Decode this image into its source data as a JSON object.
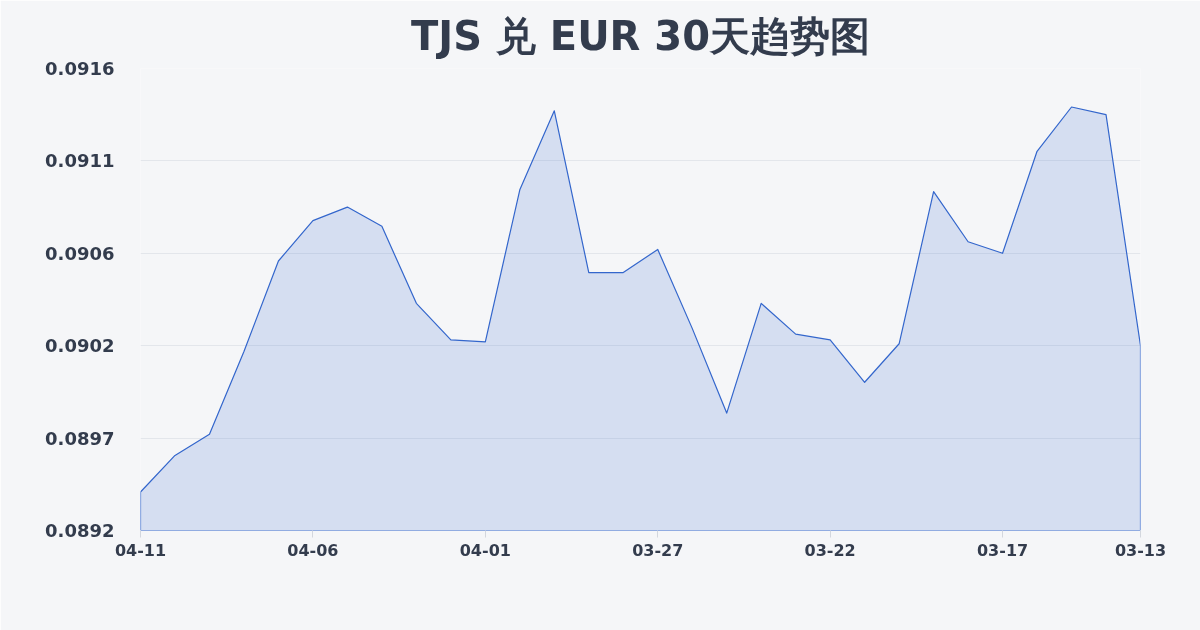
{
  "chart_data": {
    "type": "area",
    "title": "TJS 兑 EUR 30天趋势图",
    "categories": [
      "04-11",
      null,
      null,
      null,
      null,
      "04-06",
      null,
      null,
      null,
      null,
      "04-01",
      null,
      null,
      null,
      null,
      "03-27",
      null,
      null,
      null,
      null,
      "03-22",
      null,
      null,
      null,
      null,
      "03-17",
      null,
      null,
      null,
      "03-13"
    ],
    "series": [
      {
        "color": "#3366cc",
        "values": [
          0.0894,
          0.08959,
          0.0897,
          0.09013,
          0.0906,
          0.09081,
          0.09088,
          0.09078,
          0.09038,
          0.09019,
          0.09018,
          0.09097,
          0.09138,
          0.09054,
          0.09054,
          0.09066,
          0.09025,
          0.08981,
          0.09038,
          0.09022,
          0.09019,
          0.08997,
          0.09017,
          0.09096,
          0.0907,
          0.09064,
          0.09117,
          0.0914,
          0.09136,
          0.09016
        ]
      }
    ],
    "ylim": [
      0.0892,
      0.0916
    ],
    "yticks": [
      0.0892,
      {
        "value": 0.08968,
        "label": "0.0897"
      },
      {
        "value": 0.09016,
        "label": "0.0902"
      },
      {
        "value": 0.09064,
        "label": "0.0906"
      },
      {
        "value": 0.09112,
        "label": "0.0911"
      },
      0.0916
    ],
    "grid": "y"
  }
}
